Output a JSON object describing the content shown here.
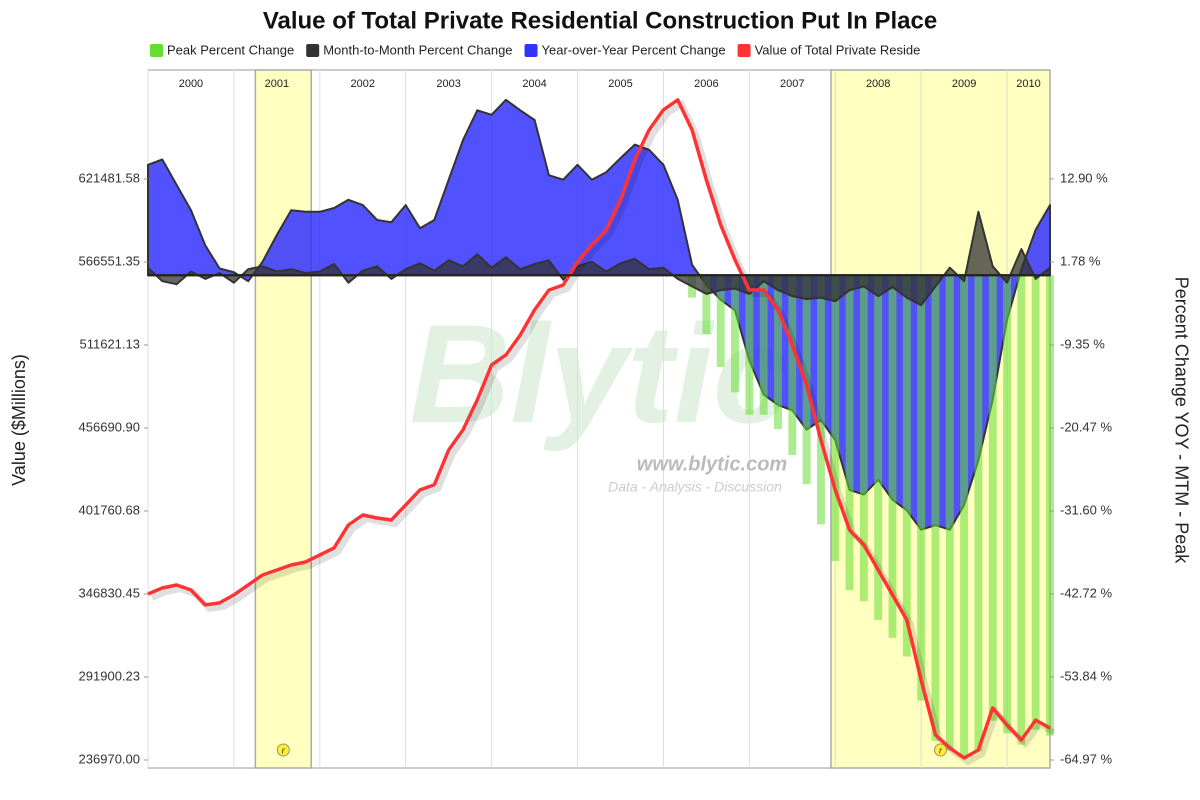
{
  "chart_data": {
    "type": "combo",
    "title": "Value of Total Private Residential Construction Put In Place",
    "y_label": "Value ($Millions)",
    "y2_label": "Percent Change YOY - MTM - Peak",
    "xlim": [
      2000,
      2010.5
    ],
    "xticks": [
      2000,
      2001,
      2002,
      2003,
      2004,
      2005,
      2006,
      2007,
      2008,
      2009,
      2010
    ],
    "xgrid": true,
    "ylim": [
      231676,
      693578
    ],
    "yticks": [
      {
        "value": 236970,
        "label": "236970.00"
      },
      291900.23,
      346830.45,
      401760.68,
      {
        "value": 456690.9,
        "label": "456690.90"
      },
      511621.13,
      566551.35,
      621481.58
    ],
    "y2lim": [
      -66.04,
      27.5
    ],
    "y2ticks": [
      {
        "value": -64.97,
        "label": "-64.97 %"
      },
      {
        "value": -53.84,
        "label": "-53.84 %"
      },
      {
        "value": -42.72,
        "label": "-42.72 %"
      },
      {
        "value": -31.6,
        "label": "-31.60 %"
      },
      {
        "value": -20.47,
        "label": "-20.47 %"
      },
      {
        "value": -9.35,
        "label": "-9.35 %"
      },
      {
        "value": 1.78,
        "label": "1.78 %"
      },
      {
        "value": 12.9,
        "label": "12.90 %"
      }
    ],
    "recessions": [
      [
        2001.25,
        2001.9
      ],
      [
        2007.95,
        2010.5
      ]
    ],
    "recession_marker": "r",
    "watermark": {
      "logo": "Blytic",
      "url": "www.blytic.com",
      "tagline": "Data - Analysis - Discussion"
    },
    "series": [
      {
        "name": "Peak Percent Change",
        "color": "#66dd33",
        "type": "bar",
        "axis": "y2",
        "values": [
          0,
          0,
          0,
          0,
          0,
          0,
          0,
          0,
          0,
          0,
          0,
          0,
          0,
          0,
          0,
          0,
          0,
          0,
          0,
          0,
          0,
          0,
          0,
          0,
          0,
          0,
          0,
          0,
          0,
          0,
          0,
          0,
          0,
          0,
          0,
          0,
          0,
          0,
          -3.0,
          -7.9,
          -12.3,
          -15.7,
          -18.7,
          -18.7,
          -20.6,
          -24.1,
          -28.0,
          -33.4,
          -38.3,
          -42.2,
          -43.7,
          -46.2,
          -48.6,
          -51.1,
          -57.0,
          -62.4,
          -63.7,
          -64.6,
          -63.8,
          -59.7,
          -61.4,
          -62.9,
          -60.9,
          -61.7
        ]
      },
      {
        "name": "Month-to-Month Percent Change",
        "color": "#333333",
        "type": "area",
        "axis": "y2",
        "values": [
          1.0,
          -0.8,
          -1.2,
          0.5,
          -0.5,
          0.3,
          -1.0,
          0.8,
          1.2,
          0.5,
          0.8,
          0.3,
          0.5,
          1.5,
          -1.0,
          0.6,
          1.2,
          -0.5,
          0.8,
          1.6,
          0.6,
          2.0,
          1.2,
          2.8,
          1.0,
          2.4,
          0.8,
          1.5,
          2.0,
          -0.6,
          1.2,
          1.8,
          0.5,
          1.6,
          2.2,
          0.8,
          1.0,
          -0.5,
          -1.5,
          -2.5,
          -2.0,
          -1.8,
          -2.5,
          -0.8,
          -2.0,
          -2.8,
          -3.2,
          -3.0,
          -3.5,
          -2.0,
          -1.5,
          -2.8,
          -1.6,
          -3.0,
          -4.0,
          -1.5,
          1.0,
          -0.8,
          8.5,
          1.2,
          -1.0,
          3.5,
          -0.5,
          1.0
        ]
      },
      {
        "name": "Year-over-Year Percent Change",
        "color": "#3333ff",
        "type": "area",
        "axis": "y2",
        "values": [
          14.8,
          15.5,
          12.1,
          8.7,
          4.0,
          0.9,
          0.4,
          -0.8,
          1.8,
          5.4,
          8.7,
          8.5,
          8.5,
          9.0,
          10.1,
          9.4,
          7.4,
          7.1,
          9.4,
          6.3,
          7.4,
          12.8,
          18.1,
          22.1,
          21.5,
          23.5,
          22.1,
          20.8,
          13.4,
          12.8,
          14.8,
          12.8,
          13.8,
          15.7,
          17.5,
          16.8,
          14.8,
          10.1,
          1.4,
          -1.3,
          -3.3,
          -4.7,
          -11.4,
          -16.0,
          -17.4,
          -18.1,
          -20.7,
          -19.4,
          -22.1,
          -28.8,
          -29.4,
          -27.4,
          -30.1,
          -31.5,
          -34.1,
          -33.5,
          -34.1,
          -30.8,
          -24.8,
          -16.7,
          -6.0,
          0.8,
          6.1,
          9.4
        ]
      },
      {
        "name": "Value of Total Private Reside",
        "color": "#ff3333",
        "type": "line",
        "axis": "y",
        "values": [
          346830,
          350800,
          352800,
          349500,
          339600,
          340900,
          346200,
          352800,
          359400,
          362700,
          366000,
          368000,
          372600,
          377300,
          392500,
          399100,
          397100,
          395800,
          405700,
          415700,
          419000,
          442100,
          455400,
          475200,
          498400,
          505000,
          518200,
          534800,
          547900,
          551300,
          566500,
          577900,
          587700,
          607600,
          634100,
          653900,
          667200,
          673800,
          653900,
          620800,
          591100,
          567900,
          548000,
          548000,
          534800,
          511600,
          485200,
          448800,
          415700,
          389200,
          379300,
          362700,
          346200,
          329600,
          289900,
          253500,
          244900,
          238300,
          243600,
          271400,
          260100,
          250200,
          263400,
          258100
        ]
      }
    ]
  }
}
